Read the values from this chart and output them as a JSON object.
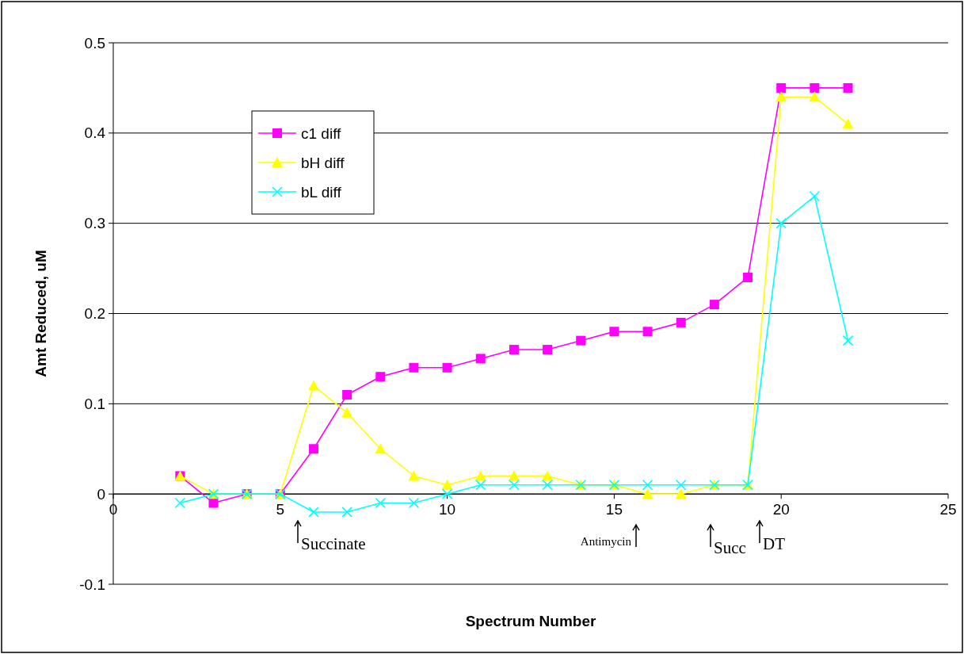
{
  "chart_data": {
    "type": "line",
    "xlabel": "Spectrum Number",
    "ylabel": "Amt Reduced, uM",
    "xlim": [
      0,
      25
    ],
    "xticks": [
      0,
      5,
      10,
      15,
      20,
      25
    ],
    "ylim": [
      -0.1,
      0.5
    ],
    "yticks": [
      -0.1,
      0,
      0.1,
      0.2,
      0.3,
      0.4,
      0.5
    ],
    "grid": "y",
    "legend": "top left",
    "x": [
      2,
      3,
      4,
      5,
      6,
      7,
      8,
      9,
      10,
      11,
      12,
      13,
      14,
      15,
      16,
      17,
      18,
      19,
      20,
      21,
      22
    ],
    "series": [
      {
        "name": "c1 diff",
        "color": "#ff00ff",
        "marker": "square",
        "values": [
          0.02,
          -0.01,
          0,
          0,
          0.05,
          0.11,
          0.13,
          0.14,
          0.14,
          0.15,
          0.16,
          0.16,
          0.17,
          0.18,
          0.18,
          0.19,
          0.21,
          0.24,
          0.45,
          0.45,
          0.45
        ]
      },
      {
        "name": "bH diff",
        "color": "#ffff00",
        "marker": "triangle",
        "values": [
          0.02,
          0,
          0,
          0,
          0.12,
          0.09,
          0.05,
          0.02,
          0.01,
          0.02,
          0.02,
          0.02,
          0.01,
          0.01,
          0,
          0,
          0.01,
          0.01,
          0.44,
          0.44,
          0.41
        ]
      },
      {
        "name": "bL diff",
        "color": "#00ffff",
        "marker": "cross",
        "values": [
          -0.01,
          0,
          0,
          0,
          -0.02,
          -0.02,
          -0.01,
          -0.01,
          0,
          0.01,
          0.01,
          0.01,
          0.01,
          0.01,
          0.01,
          0.01,
          0.01,
          0.01,
          0.3,
          0.33,
          0.17
        ]
      }
    ],
    "annotations": [
      "Succinate",
      "Antimycin",
      "Succ",
      "DT"
    ]
  }
}
